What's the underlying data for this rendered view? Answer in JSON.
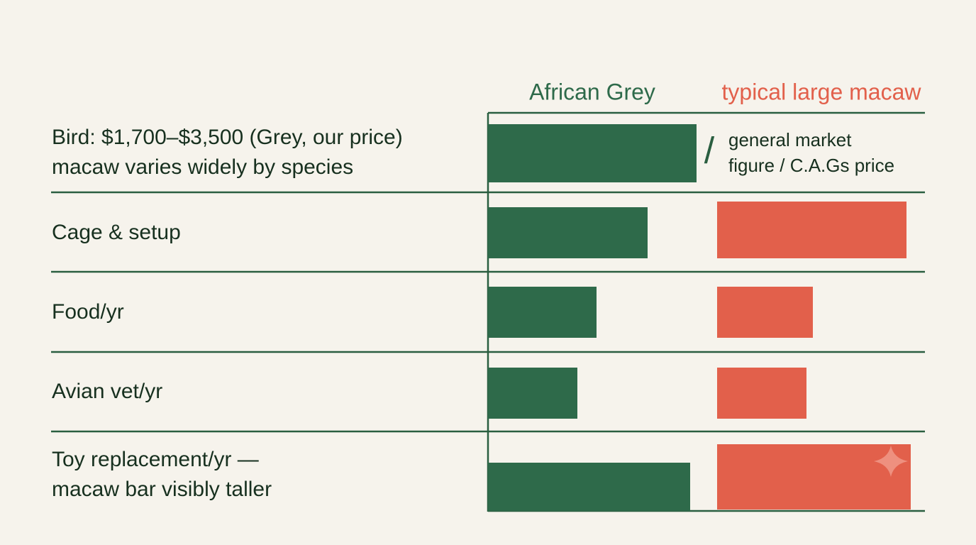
{
  "chart_data": {
    "type": "bar",
    "orientation": "horizontal",
    "categories": [
      [
        "Bird: $1,700–$3,500 (Grey, our price)",
        "macaw varies widely by species"
      ],
      [
        "Cage & setup"
      ],
      [
        "Food/yr"
      ],
      [
        "Avian vet/yr"
      ],
      [
        "Toy replacement/yr —",
        "macaw bar visibly taller"
      ]
    ],
    "series": [
      {
        "name": "African Grey",
        "color": "#2e6a4a",
        "values": [
          98,
          75,
          51,
          42,
          95
        ]
      },
      {
        "name": "typical large macaw",
        "color": "#e2604b",
        "values": [
          null,
          89,
          45,
          42,
          91
        ]
      }
    ],
    "annotation": [
      "/",
      "general market",
      "figure / C.A.Gs price"
    ]
  }
}
